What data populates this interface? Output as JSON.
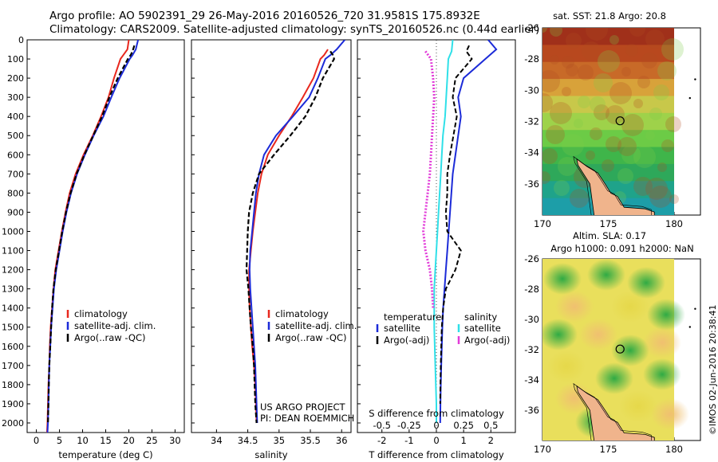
{
  "header": {
    "line1": "Argo profile: AO 5902391_29 26-May-2016 20160526_720 31.9581S 175.8932E",
    "line2": "Climatology: CARS2009. Satellite-adjusted climatology: synTS_20160526.nc (0.44d earlier)"
  },
  "colors": {
    "climatology": "#e8281e",
    "satellite": "#1c2bd8",
    "argo": "#000000",
    "satellite_diff_s": "#2fe0e8",
    "argo_diff_s": "#e23cd9",
    "land": "#f0b48c"
  },
  "chart_data": [
    {
      "type": "line",
      "panel": "temperature",
      "xlabel": "temperature (deg C)",
      "ylabel": "",
      "xlim": [
        -2,
        32
      ],
      "ylim": [
        2050,
        0
      ],
      "xticks": [
        "0",
        "5",
        "10",
        "15",
        "20",
        "25",
        "30"
      ],
      "yticks": [
        "0",
        "100",
        "200",
        "300",
        "400",
        "500",
        "600",
        "700",
        "800",
        "900",
        "1000",
        "1100",
        "1200",
        "1300",
        "1400",
        "1500",
        "1600",
        "1700",
        "1800",
        "1900",
        "2000"
      ],
      "legend": [
        "climatology",
        "satellite-adj. clim.",
        "Argo(..raw -QC)"
      ],
      "legend_position": "lower-middle",
      "series": [
        {
          "name": "climatology",
          "x": [
            20.0,
            19.7,
            18.8,
            18.2,
            16.8,
            15.6,
            14.0,
            12.2,
            10.2,
            8.5,
            7.2,
            6.3,
            5.5,
            4.8,
            4.1,
            3.7,
            3.4,
            3.1,
            2.9,
            2.8,
            2.6,
            2.5,
            2.4,
            2.3,
            2.3,
            2.2,
            2.2
          ],
          "y": [
            0,
            50,
            80,
            100,
            200,
            300,
            400,
            500,
            600,
            700,
            800,
            900,
            1000,
            1100,
            1200,
            1300,
            1400,
            1500,
            1600,
            1700,
            1800,
            1900,
            2000,
            2050,
            2050,
            2050,
            2050
          ]
        },
        {
          "name": "satellite-adj. clim.",
          "x": [
            22.0,
            21.5,
            20.8,
            20.2,
            18.0,
            16.2,
            14.5,
            12.4,
            10.5,
            8.8,
            7.5,
            6.5,
            5.7,
            5.0,
            4.3,
            3.8,
            3.5,
            3.2,
            3.0,
            2.8,
            2.7,
            2.6,
            2.5,
            2.4
          ],
          "y": [
            0,
            50,
            80,
            100,
            200,
            300,
            400,
            500,
            600,
            700,
            800,
            900,
            1000,
            1100,
            1200,
            1300,
            1400,
            1500,
            1600,
            1700,
            1800,
            1900,
            2000,
            2050
          ]
        },
        {
          "name": "Argo(..raw -QC)",
          "x": [
            21.2,
            20.8,
            20.4,
            19.8,
            17.6,
            15.8,
            14.2,
            12.3,
            10.4,
            8.7,
            7.4,
            6.4,
            5.6,
            4.9,
            4.2,
            3.7,
            3.4,
            3.2,
            3.0,
            2.8,
            2.7,
            2.6,
            2.5
          ],
          "y": [
            30,
            60,
            80,
            100,
            200,
            300,
            400,
            500,
            600,
            700,
            800,
            900,
            1000,
            1100,
            1200,
            1300,
            1400,
            1500,
            1600,
            1700,
            1800,
            1900,
            2000
          ]
        }
      ]
    },
    {
      "type": "line",
      "panel": "salinity",
      "xlabel": "salinity",
      "ylabel": "",
      "xlim": [
        33.6,
        36.15
      ],
      "ylim": [
        2050,
        0
      ],
      "xticks": [
        "34",
        "34.5",
        "35",
        "35.5",
        "36"
      ],
      "legend": [
        "climatology",
        "satellite-adj. clim.",
        "Argo(..raw -QC)"
      ],
      "legend_position": "lower-middle",
      "annotation": [
        "US ARGO PROJECT",
        "PI: DEAN ROEMMICH"
      ],
      "series": [
        {
          "name": "climatology",
          "x": [
            35.78,
            35.72,
            35.66,
            35.55,
            35.38,
            35.2,
            35.0,
            34.82,
            34.72,
            34.66,
            34.62,
            34.58,
            34.55,
            34.52,
            34.52,
            34.53,
            34.55,
            34.57,
            34.6,
            34.62,
            34.63,
            34.64
          ],
          "y": [
            50,
            80,
            100,
            200,
            300,
            400,
            500,
            600,
            700,
            800,
            900,
            1000,
            1100,
            1200,
            1300,
            1400,
            1500,
            1600,
            1700,
            1800,
            1900,
            2000
          ]
        },
        {
          "name": "satellite-adj. clim.",
          "x": [
            36.05,
            35.92,
            35.82,
            35.74,
            35.62,
            35.48,
            35.22,
            34.95,
            34.76,
            34.68,
            34.63,
            34.6,
            34.57,
            34.54,
            34.53,
            34.54,
            34.56,
            34.58,
            34.6,
            34.62,
            34.63,
            34.64,
            34.65
          ],
          "y": [
            0,
            50,
            80,
            100,
            200,
            300,
            400,
            500,
            600,
            700,
            800,
            900,
            1000,
            1100,
            1200,
            1300,
            1400,
            1500,
            1600,
            1700,
            1800,
            1900,
            2000
          ]
        },
        {
          "name": "Argo(..raw -QC)",
          "x": [
            35.82,
            35.86,
            35.88,
            35.7,
            35.58,
            35.42,
            35.18,
            34.92,
            34.68,
            34.58,
            34.52,
            34.5,
            34.49,
            34.48,
            34.51,
            34.53,
            34.55,
            34.58,
            34.6,
            34.61,
            34.62,
            34.64
          ],
          "y": [
            60,
            80,
            100,
            200,
            300,
            400,
            500,
            600,
            700,
            800,
            900,
            1000,
            1100,
            1200,
            1300,
            1400,
            1500,
            1600,
            1700,
            1800,
            1900,
            2000
          ]
        }
      ]
    },
    {
      "type": "line",
      "panel": "difference from climatology",
      "xlabel": "T difference from climatology",
      "xlabel_top": "S difference from climatology",
      "xlim": [
        -2.9,
        2.9
      ],
      "ylim": [
        2050,
        0
      ],
      "xticks_T": [
        "-2",
        "-1",
        "0",
        "1",
        "2"
      ],
      "xticks_S": [
        "-0.5",
        "-0.25",
        "0",
        "0.25",
        "0.5"
      ],
      "legend_titles": [
        "temperature",
        "salinity"
      ],
      "legend_temperature": [
        "satellite",
        "Argo(-adj)"
      ],
      "legend_salinity": [
        "satellite",
        "Argo(-adj)"
      ],
      "legend_position": "lower-middle",
      "series": [
        {
          "name": "satellite",
          "quantity": "T",
          "x": [
            1.9,
            2.2,
            1.8,
            1.0,
            0.8,
            0.9,
            0.7,
            0.6,
            0.55,
            0.5,
            0.45,
            0.4,
            0.35,
            0.3,
            0.25,
            0.22,
            0.2,
            0.18,
            0.16,
            0.15,
            0.14
          ],
          "y": [
            0,
            50,
            100,
            200,
            300,
            400,
            600,
            700,
            800,
            900,
            1000,
            1100,
            1200,
            1300,
            1400,
            1500,
            1600,
            1700,
            1800,
            1900,
            2000
          ]
        },
        {
          "name": "Argo(-adj)",
          "quantity": "T",
          "x": [
            1.2,
            1.1,
            1.3,
            0.7,
            0.6,
            0.75,
            0.5,
            0.4,
            0.4,
            0.35,
            0.4,
            0.9,
            0.7,
            0.35,
            0.25,
            0.2,
            0.18,
            0.16,
            0.15,
            0.14
          ],
          "y": [
            30,
            60,
            100,
            200,
            300,
            400,
            600,
            700,
            800,
            900,
            1000,
            1100,
            1200,
            1300,
            1400,
            1500,
            1600,
            1700,
            1800,
            1900
          ]
        },
        {
          "name": "satellite",
          "quantity": "S",
          "x": [
            0.15,
            0.14,
            0.11,
            0.1,
            0.09,
            0.08,
            0.06,
            0.05,
            0.04,
            0.03,
            0.02,
            0.01,
            0.0,
            -0.01,
            -0.02,
            -0.02,
            -0.02,
            -0.01,
            0.0,
            0.0
          ],
          "y": [
            0,
            60,
            100,
            200,
            300,
            400,
            500,
            600,
            700,
            800,
            900,
            1000,
            1100,
            1200,
            1300,
            1400,
            1500,
            1700,
            1900,
            2000
          ]
        },
        {
          "name": "Argo(-adj)",
          "quantity": "S",
          "x": [
            -0.1,
            -0.05,
            -0.03,
            -0.02,
            -0.03,
            -0.04,
            -0.05,
            -0.06,
            -0.08,
            -0.1,
            -0.12,
            -0.1,
            -0.06,
            -0.04,
            -0.03
          ],
          "y": [
            60,
            100,
            200,
            300,
            400,
            500,
            600,
            700,
            800,
            900,
            1000,
            1100,
            1200,
            1300,
            1400
          ]
        }
      ]
    },
    {
      "type": "heatmap",
      "panel": "sst-map",
      "title": "sat. SST: 21.8 Argo: 20.8",
      "xlim": [
        170,
        182
      ],
      "ylim": [
        -38,
        -26
      ],
      "xticks": [
        "170",
        "175",
        "180"
      ],
      "yticks": [
        "-26",
        "-28",
        "-30",
        "-32",
        "-34",
        "-36"
      ],
      "argo_position": {
        "lon": 175.8932,
        "lat": -31.9581
      }
    },
    {
      "type": "heatmap",
      "panel": "sla-map",
      "title": "Altim. SLA: 0.17",
      "subtitle": "Argo h1000: 0.091 h2000: NaN",
      "xlim": [
        170,
        182
      ],
      "ylim": [
        -38,
        -26
      ],
      "xticks": [
        "170",
        "175",
        "180"
      ],
      "yticks": [
        "-26",
        "-28",
        "-30",
        "-32",
        "-34",
        "-36"
      ],
      "argo_position": {
        "lon": 175.8932,
        "lat": -31.9581
      }
    }
  ],
  "footer": {
    "credit": "©IMOS 02-Jun-2016 20:38:41"
  }
}
